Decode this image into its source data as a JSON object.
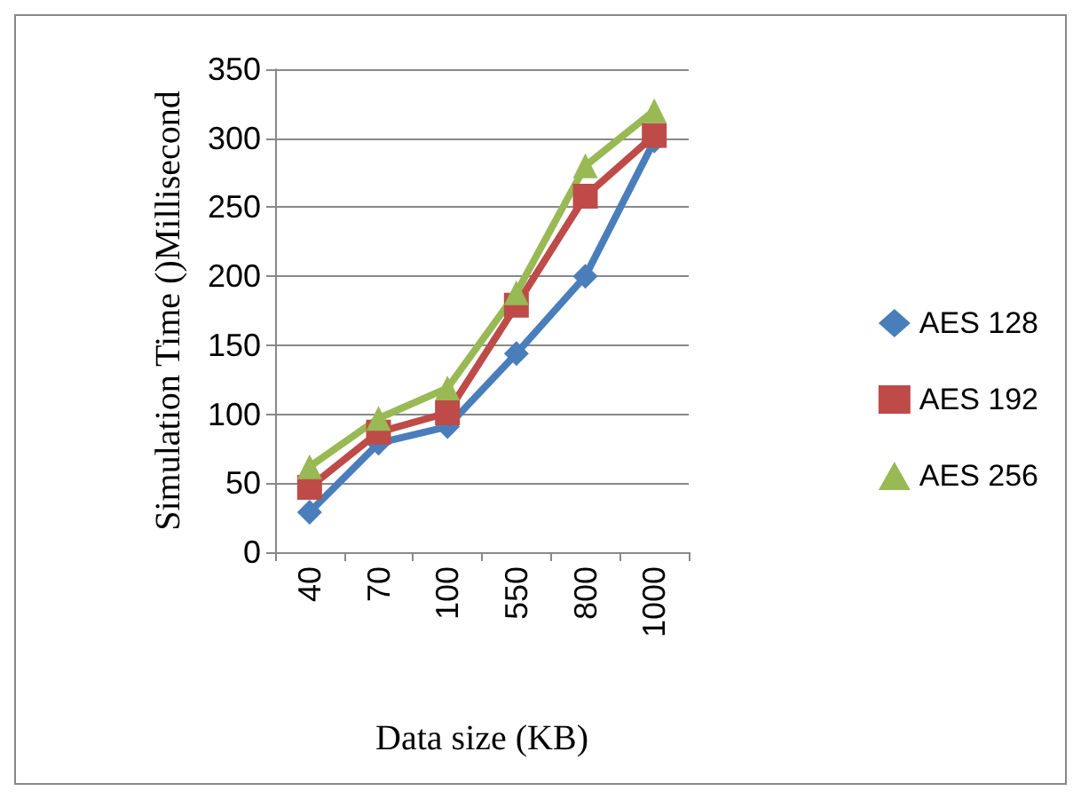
{
  "chart_data": {
    "type": "line",
    "xlabel": "Data size (KB)",
    "ylabel": "Simulation Time ()Millisecond",
    "categories": [
      "40",
      "70",
      "100",
      "550",
      "800",
      "1000"
    ],
    "series": [
      {
        "name": "AES 128",
        "color": "#4a7ebb",
        "marker": "diamond",
        "values": [
          29,
          79,
          91,
          144,
          200,
          298
        ]
      },
      {
        "name": "AES 192",
        "color": "#be4b48",
        "marker": "square",
        "values": [
          47,
          87,
          101,
          179,
          258,
          302
        ]
      },
      {
        "name": "AES 256",
        "color": "#98b954",
        "marker": "triangle",
        "values": [
          62,
          97,
          119,
          188,
          280,
          320
        ]
      }
    ],
    "ylim": [
      0,
      350
    ],
    "yticks": [
      0,
      50,
      100,
      150,
      200,
      250,
      300,
      350
    ],
    "grid": "y",
    "legend": "right",
    "line_style": "solid"
  }
}
